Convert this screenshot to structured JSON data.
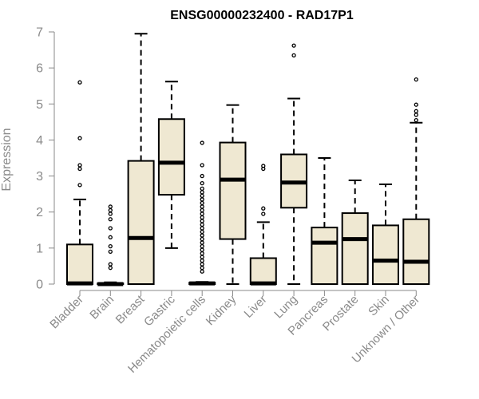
{
  "chart_data": {
    "type": "box",
    "title": "ENSG00000232400 - RAD17P1",
    "xlabel": "",
    "ylabel": "Expression",
    "ylim": [
      0,
      7
    ],
    "yticks": [
      0,
      1,
      2,
      3,
      4,
      5,
      6,
      7
    ],
    "colors": {
      "box_fill": "#efe8d2",
      "stroke": "#000000",
      "axis": "#8a8a8a"
    },
    "categories": [
      "Bladder",
      "Brain",
      "Breast",
      "Gastric",
      "Hematopoietic cells",
      "Kidney",
      "Liver",
      "Lung",
      "Pancreas",
      "Prostate",
      "Skin",
      "Unknown / Other"
    ],
    "boxes": [
      {
        "name": "Bladder",
        "whisker_low": 0,
        "q1": 0,
        "median": 0.02,
        "q3": 1.1,
        "whisker_high": 2.35,
        "outliers": [
          2.75,
          3.2,
          3.3,
          4.05,
          5.6
        ]
      },
      {
        "name": "Brain",
        "whisker_low": 0,
        "q1": 0,
        "median": 0.0,
        "q3": 0.02,
        "whisker_high": 0.05,
        "outliers": [
          0.45,
          0.55,
          0.9,
          1.05,
          1.3,
          1.55,
          1.8,
          1.95,
          2.05,
          2.15
        ]
      },
      {
        "name": "Breast",
        "whisker_low": 0,
        "q1": 0,
        "median": 1.28,
        "q3": 3.42,
        "whisker_high": 6.95,
        "outliers": []
      },
      {
        "name": "Gastric",
        "whisker_low": 1.0,
        "q1": 2.48,
        "median": 3.37,
        "q3": 4.58,
        "whisker_high": 5.62,
        "outliers": []
      },
      {
        "name": "Hematopoietic cells",
        "whisker_low": 0,
        "q1": 0,
        "median": 0.02,
        "q3": 0.04,
        "whisker_high": 0.06,
        "outliers": [
          0.35,
          0.45,
          0.55,
          0.65,
          0.75,
          0.85,
          0.95,
          1.05,
          1.15,
          1.25,
          1.35,
          1.45,
          1.55,
          1.65,
          1.75,
          1.85,
          1.95,
          2.05,
          2.15,
          2.25,
          2.35,
          2.45,
          2.55,
          2.65,
          2.8,
          3.0,
          3.3,
          3.92
        ]
      },
      {
        "name": "Kidney",
        "whisker_low": 0,
        "q1": 1.25,
        "median": 2.9,
        "q3": 3.93,
        "whisker_high": 4.97,
        "outliers": []
      },
      {
        "name": "Liver",
        "whisker_low": 0,
        "q1": 0,
        "median": 0.02,
        "q3": 0.72,
        "whisker_high": 1.72,
        "outliers": [
          1.95,
          2.1,
          3.2,
          3.28
        ]
      },
      {
        "name": "Lung",
        "whisker_low": 0,
        "q1": 2.12,
        "median": 2.82,
        "q3": 3.6,
        "whisker_high": 5.15,
        "outliers": [
          6.35,
          6.62
        ]
      },
      {
        "name": "Pancreas",
        "whisker_low": 0,
        "q1": 0,
        "median": 1.15,
        "q3": 1.57,
        "whisker_high": 3.5,
        "outliers": []
      },
      {
        "name": "Prostate",
        "whisker_low": 0,
        "q1": 0,
        "median": 1.25,
        "q3": 1.97,
        "whisker_high": 2.88,
        "outliers": []
      },
      {
        "name": "Skin",
        "whisker_low": 0,
        "q1": 0,
        "median": 0.65,
        "q3": 1.63,
        "whisker_high": 2.77,
        "outliers": []
      },
      {
        "name": "Unknown / Other",
        "whisker_low": 0,
        "q1": 0,
        "median": 0.62,
        "q3": 1.8,
        "whisker_high": 4.48,
        "outliers": [
          4.55,
          4.7,
          4.8,
          4.98,
          5.68
        ]
      }
    ]
  }
}
